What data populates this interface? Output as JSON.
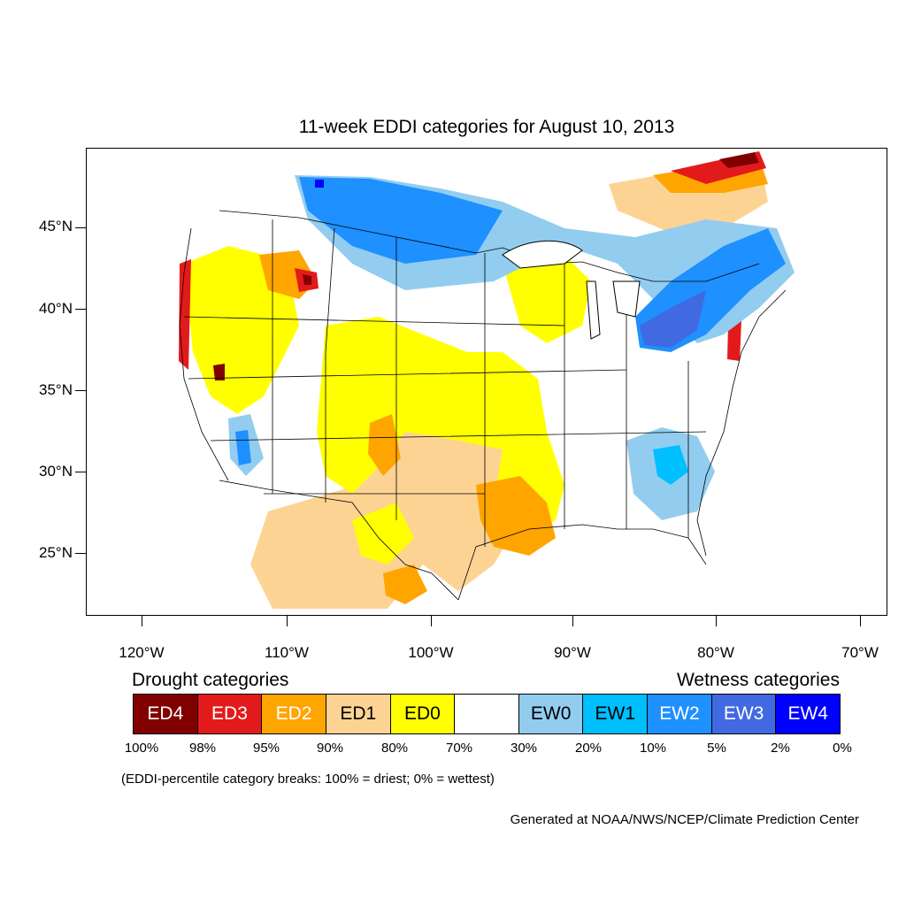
{
  "map": {
    "title": "11-week EDDI categories for August 10, 2013",
    "lat_labels": [
      "45°N",
      "40°N",
      "35°N",
      "30°N",
      "25°N"
    ],
    "lon_labels": [
      "120°W",
      "110°W",
      "100°W",
      "90°W",
      "80°W",
      "70°W"
    ],
    "region": "Contiguous United States",
    "colors": {
      "ED4": "#800000",
      "ED3": "#e31a1c",
      "ED2": "#ffa500",
      "ED1": "#fdd394",
      "ED0": "#ffff00",
      "normal": "#ffffff",
      "EW0": "#92cdf0",
      "EW1": "#00bfff",
      "EW2": "#1e90ff",
      "EW3": "#4169e1",
      "EW4": "#0000ff"
    }
  },
  "legend": {
    "drought_heading": "Drought categories",
    "wetness_heading": "Wetness categories",
    "categories": [
      {
        "label": "ED4",
        "color": "#800000",
        "text_color": "#ffffff"
      },
      {
        "label": "ED3",
        "color": "#e31a1c",
        "text_color": "#ffffff"
      },
      {
        "label": "ED2",
        "color": "#ffa500",
        "text_color": "#ffffff"
      },
      {
        "label": "ED1",
        "color": "#fdd394",
        "text_color": "#000000"
      },
      {
        "label": "ED0",
        "color": "#ffff00",
        "text_color": "#000000"
      },
      {
        "label": "",
        "color": "#ffffff",
        "text_color": "#000000"
      },
      {
        "label": "EW0",
        "color": "#92cdf0",
        "text_color": "#000000"
      },
      {
        "label": "EW1",
        "color": "#00bfff",
        "text_color": "#000000"
      },
      {
        "label": "EW2",
        "color": "#1e90ff",
        "text_color": "#ffffff"
      },
      {
        "label": "EW3",
        "color": "#4169e1",
        "text_color": "#ffffff"
      },
      {
        "label": "EW4",
        "color": "#0000ff",
        "text_color": "#ffffff"
      }
    ],
    "percentiles": [
      "100%",
      "98%",
      "95%",
      "90%",
      "80%",
      "70%",
      "30%",
      "20%",
      "10%",
      "5%",
      "2%",
      "0%"
    ],
    "note": "(EDDI-percentile category breaks: 100% = driest; 0% = wettest)"
  },
  "credit": "Generated at NOAA/NWS/NCEP/Climate Prediction Center"
}
